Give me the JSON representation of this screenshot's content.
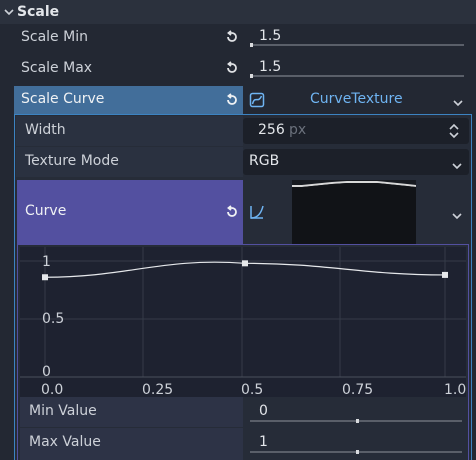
{
  "section": {
    "title": "Scale"
  },
  "scale_min": {
    "label": "Scale Min",
    "value": "1.5",
    "fraction": 0.0
  },
  "scale_max": {
    "label": "Scale Max",
    "value": "1.5",
    "fraction": 0.0
  },
  "scale_curve": {
    "label": "Scale Curve",
    "resource": "CurveTexture"
  },
  "width": {
    "label": "Width",
    "value": "256",
    "unit": "px"
  },
  "texture_mode": {
    "label": "Texture Mode",
    "value": "RGB"
  },
  "curve": {
    "label": "Curve",
    "y_ticks": [
      "1",
      "0.5",
      "0"
    ],
    "x_ticks": [
      "0.0",
      "0.25",
      "0.5",
      "0.75",
      "1.0"
    ],
    "points": [
      {
        "x": 0.0,
        "y": 0.86
      },
      {
        "x": 0.5,
        "y": 0.98
      },
      {
        "x": 1.0,
        "y": 0.88
      }
    ]
  },
  "min_value": {
    "label": "Min Value",
    "value": "0",
    "fraction": 0.5
  },
  "max_value": {
    "label": "Max Value",
    "value": "1",
    "fraction": 0.5
  },
  "colors": {
    "accent": "#3c83c2",
    "curve_header": "#5350a0",
    "scale_curve_header": "#426e9a"
  },
  "icons": [
    "chevron-down-icon",
    "revert-icon",
    "curve-icon",
    "updown-icon"
  ]
}
